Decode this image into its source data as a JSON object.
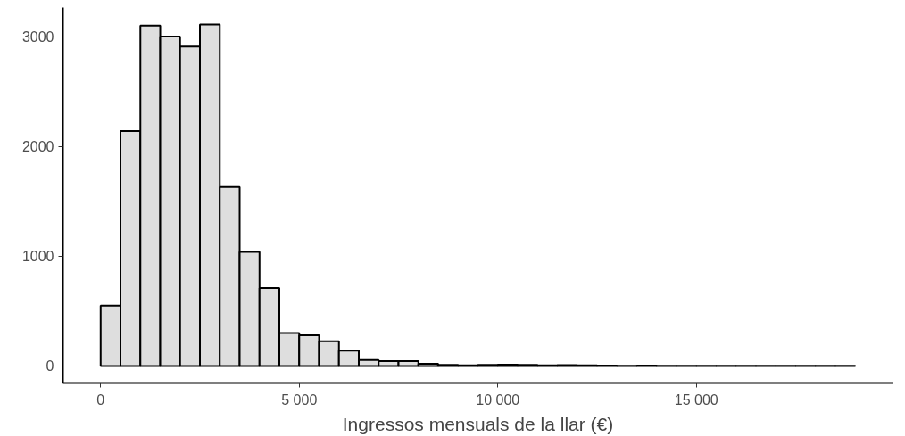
{
  "chart_data": {
    "type": "histogram",
    "xlabel": "Ingressos mensuals de la llar (€)",
    "bins": [
      0,
      500,
      1000,
      1500,
      2000,
      2500,
      3000,
      3500,
      4000,
      4500,
      5000,
      5500,
      6000,
      6500,
      7000,
      7500,
      8000,
      8500,
      9000,
      9500,
      10000,
      10500,
      11000,
      11500,
      12000,
      12500,
      13000,
      13500,
      14000,
      14500,
      15000,
      15500,
      16000,
      16500,
      17000,
      17500,
      18000,
      18500,
      19000
    ],
    "values": [
      550,
      2140,
      3100,
      3000,
      2910,
      3110,
      1630,
      1040,
      710,
      300,
      280,
      225,
      140,
      55,
      45,
      45,
      20,
      10,
      5,
      10,
      12,
      10,
      5,
      8,
      5,
      3,
      2,
      4,
      2,
      2,
      1,
      1,
      1,
      1,
      1,
      1,
      1,
      1
    ],
    "color": "#dedede",
    "xlim": [
      -950,
      19950
    ],
    "ylim": [
      -155,
      3265
    ],
    "xticks": [
      0,
      {
        "value": 5000,
        "label": "5 000"
      },
      {
        "value": 10000,
        "label": "10 000"
      },
      {
        "value": 15000,
        "label": "15 000"
      }
    ],
    "yticks": [
      0,
      1000,
      2000,
      3000
    ],
    "grid": false
  }
}
